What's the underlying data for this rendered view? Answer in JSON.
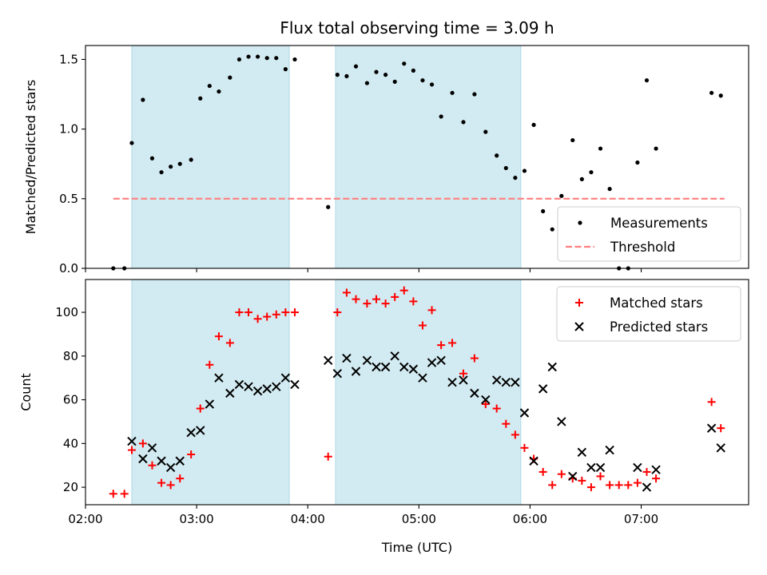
{
  "chart_data": {
    "title": "Flux total observing time = 3.09 h",
    "xlabel": "Time (UTC)",
    "x_ticks": [
      "02:00",
      "03:00",
      "04:00",
      "05:00",
      "06:00",
      "07:00"
    ],
    "x_range": [
      "02:00",
      "07:58"
    ],
    "shaded_intervals": [
      [
        "02:25",
        "03:50"
      ],
      [
        "04:15",
        "05:55"
      ]
    ],
    "shade_color": "#add8e6",
    "panels": [
      {
        "type": "scatter",
        "ylabel": "Matched/Predicted stars",
        "ylim": [
          0,
          1.6
        ],
        "y_ticks": [
          "0.0",
          "0.5",
          "1.0",
          "1.5"
        ],
        "legend_position": "lower-right",
        "series": [
          {
            "name": "Measurements",
            "marker": "dot",
            "color": "#000000",
            "points": [
              [
                "02:15",
                0
              ],
              [
                "02:21",
                0
              ],
              [
                "02:25",
                0.9
              ],
              [
                "02:31",
                1.21
              ],
              [
                "02:36",
                0.79
              ],
              [
                "02:41",
                0.69
              ],
              [
                "02:46",
                0.73
              ],
              [
                "02:51",
                0.75
              ],
              [
                "02:57",
                0.78
              ],
              [
                "03:02",
                1.22
              ],
              [
                "03:07",
                1.31
              ],
              [
                "03:12",
                1.27
              ],
              [
                "03:18",
                1.37
              ],
              [
                "03:23",
                1.5
              ],
              [
                "03:28",
                1.52
              ],
              [
                "03:33",
                1.52
              ],
              [
                "03:38",
                1.51
              ],
              [
                "03:43",
                1.51
              ],
              [
                "03:48",
                1.43
              ],
              [
                "03:53",
                1.5
              ],
              [
                "04:11",
                0.44
              ],
              [
                "04:16",
                1.39
              ],
              [
                "04:21",
                1.38
              ],
              [
                "04:26",
                1.45
              ],
              [
                "04:32",
                1.33
              ],
              [
                "04:37",
                1.41
              ],
              [
                "04:42",
                1.39
              ],
              [
                "04:47",
                1.34
              ],
              [
                "04:52",
                1.47
              ],
              [
                "04:57",
                1.42
              ],
              [
                "05:02",
                1.35
              ],
              [
                "05:07",
                1.32
              ],
              [
                "05:12",
                1.09
              ],
              [
                "05:18",
                1.26
              ],
              [
                "05:24",
                1.05
              ],
              [
                "05:30",
                1.25
              ],
              [
                "05:36",
                0.98
              ],
              [
                "05:42",
                0.81
              ],
              [
                "05:47",
                0.72
              ],
              [
                "05:52",
                0.65
              ],
              [
                "05:57",
                0.7
              ],
              [
                "06:02",
                1.03
              ],
              [
                "06:07",
                0.41
              ],
              [
                "06:12",
                0.28
              ],
              [
                "06:17",
                0.52
              ],
              [
                "06:23",
                0.92
              ],
              [
                "06:28",
                0.64
              ],
              [
                "06:33",
                0.69
              ],
              [
                "06:38",
                0.86
              ],
              [
                "06:43",
                0.57
              ],
              [
                "06:48",
                0
              ],
              [
                "06:53",
                0
              ],
              [
                "06:58",
                0.76
              ],
              [
                "07:03",
                1.35
              ],
              [
                "07:08",
                0.86
              ],
              [
                "07:38",
                1.26
              ],
              [
                "07:43",
                1.24
              ]
            ]
          },
          {
            "name": "Threshold",
            "marker": "dashed-line",
            "color": "#ff7f7f",
            "points": [
              [
                "02:15",
                0.5
              ],
              [
                "07:45",
                0.5
              ]
            ]
          }
        ]
      },
      {
        "type": "scatter",
        "ylabel": "Count",
        "ylim": [
          12,
          115
        ],
        "y_ticks": [
          "20",
          "40",
          "60",
          "80",
          "100"
        ],
        "legend_position": "upper-right",
        "series": [
          {
            "name": "Matched stars",
            "marker": "plus",
            "color": "#ff0000",
            "points": [
              [
                "02:15",
                17
              ],
              [
                "02:21",
                17
              ],
              [
                "02:25",
                37
              ],
              [
                "02:31",
                40
              ],
              [
                "02:36",
                30
              ],
              [
                "02:41",
                22
              ],
              [
                "02:46",
                21
              ],
              [
                "02:51",
                24
              ],
              [
                "02:57",
                35
              ],
              [
                "03:02",
                56
              ],
              [
                "03:07",
                76
              ],
              [
                "03:12",
                89
              ],
              [
                "03:18",
                86
              ],
              [
                "03:23",
                100
              ],
              [
                "03:28",
                100
              ],
              [
                "03:33",
                97
              ],
              [
                "03:38",
                98
              ],
              [
                "03:43",
                99
              ],
              [
                "03:48",
                100
              ],
              [
                "03:53",
                100
              ],
              [
                "04:11",
                34
              ],
              [
                "04:16",
                100
              ],
              [
                "04:21",
                109
              ],
              [
                "04:26",
                106
              ],
              [
                "04:32",
                104
              ],
              [
                "04:37",
                106
              ],
              [
                "04:42",
                104
              ],
              [
                "04:47",
                107
              ],
              [
                "04:52",
                110
              ],
              [
                "04:57",
                105
              ],
              [
                "05:02",
                94
              ],
              [
                "05:07",
                101
              ],
              [
                "05:12",
                85
              ],
              [
                "05:18",
                86
              ],
              [
                "05:24",
                72
              ],
              [
                "05:30",
                79
              ],
              [
                "05:36",
                58
              ],
              [
                "05:42",
                56
              ],
              [
                "05:47",
                49
              ],
              [
                "05:52",
                44
              ],
              [
                "05:57",
                38
              ],
              [
                "06:02",
                33
              ],
              [
                "06:07",
                27
              ],
              [
                "06:12",
                21
              ],
              [
                "06:17",
                26
              ],
              [
                "06:23",
                24
              ],
              [
                "06:28",
                23
              ],
              [
                "06:33",
                20
              ],
              [
                "06:38",
                25
              ],
              [
                "06:43",
                21
              ],
              [
                "06:48",
                21
              ],
              [
                "06:53",
                21
              ],
              [
                "06:58",
                22
              ],
              [
                "07:03",
                27
              ],
              [
                "07:08",
                24
              ],
              [
                "07:38",
                59
              ],
              [
                "07:43",
                47
              ]
            ]
          },
          {
            "name": "Predicted stars",
            "marker": "x",
            "color": "#000000",
            "points": [
              [
                "02:25",
                41
              ],
              [
                "02:31",
                33
              ],
              [
                "02:36",
                38
              ],
              [
                "02:41",
                32
              ],
              [
                "02:46",
                29
              ],
              [
                "02:51",
                32
              ],
              [
                "02:57",
                45
              ],
              [
                "03:02",
                46
              ],
              [
                "03:07",
                58
              ],
              [
                "03:12",
                70
              ],
              [
                "03:18",
                63
              ],
              [
                "03:23",
                67
              ],
              [
                "03:28",
                66
              ],
              [
                "03:33",
                64
              ],
              [
                "03:38",
                65
              ],
              [
                "03:43",
                66
              ],
              [
                "03:48",
                70
              ],
              [
                "03:53",
                67
              ],
              [
                "04:11",
                78
              ],
              [
                "04:16",
                72
              ],
              [
                "04:21",
                79
              ],
              [
                "04:26",
                73
              ],
              [
                "04:32",
                78
              ],
              [
                "04:37",
                75
              ],
              [
                "04:42",
                75
              ],
              [
                "04:47",
                80
              ],
              [
                "04:52",
                75
              ],
              [
                "04:57",
                74
              ],
              [
                "05:02",
                70
              ],
              [
                "05:07",
                77
              ],
              [
                "05:12",
                78
              ],
              [
                "05:18",
                68
              ],
              [
                "05:24",
                69
              ],
              [
                "05:30",
                63
              ],
              [
                "05:36",
                60
              ],
              [
                "05:42",
                69
              ],
              [
                "05:47",
                68
              ],
              [
                "05:52",
                68
              ],
              [
                "05:57",
                54
              ],
              [
                "06:02",
                32
              ],
              [
                "06:07",
                65
              ],
              [
                "06:12",
                75
              ],
              [
                "06:17",
                50
              ],
              [
                "06:23",
                25
              ],
              [
                "06:28",
                36
              ],
              [
                "06:33",
                29
              ],
              [
                "06:38",
                29
              ],
              [
                "06:43",
                37
              ],
              [
                "06:58",
                29
              ],
              [
                "07:03",
                20
              ],
              [
                "07:08",
                28
              ],
              [
                "07:38",
                47
              ],
              [
                "07:43",
                38
              ]
            ]
          }
        ]
      }
    ]
  }
}
